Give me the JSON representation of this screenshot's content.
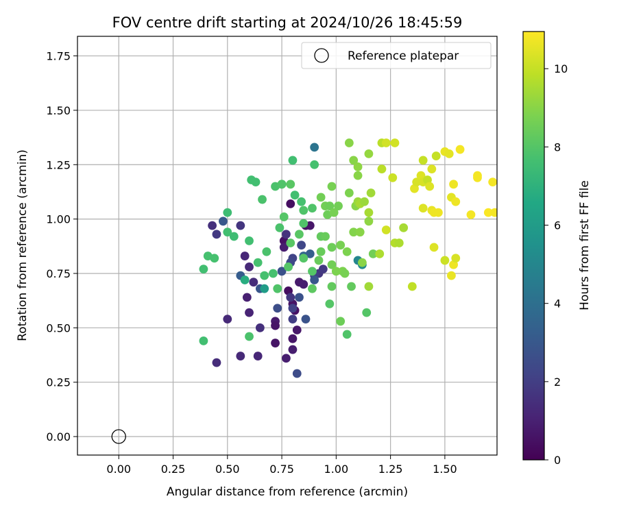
{
  "chart_data": {
    "type": "scatter",
    "title": "FOV centre drift starting at 2024/10/26 18:45:59",
    "xlabel": "Angular distance from reference (arcmin)",
    "ylabel": "Rotation from reference (arcmin)",
    "xlim": [
      -0.19,
      1.74
    ],
    "ylim": [
      -0.085,
      1.84
    ],
    "xticks": [
      0.0,
      0.25,
      0.5,
      0.75,
      1.0,
      1.25,
      1.5
    ],
    "xtick_labels": [
      "0.00",
      "0.25",
      "0.50",
      "0.75",
      "1.00",
      "1.25",
      "1.50"
    ],
    "yticks": [
      0.0,
      0.25,
      0.5,
      0.75,
      1.0,
      1.25,
      1.5,
      1.75
    ],
    "ytick_labels": [
      "0.00",
      "0.25",
      "0.50",
      "0.75",
      "1.00",
      "1.25",
      "1.50",
      "1.75"
    ],
    "grid": true,
    "legend": {
      "location": "upper right",
      "label": "Reference platepar"
    },
    "reference_point": {
      "x": 0.0,
      "y": 0.0,
      "marker": "open-circle"
    },
    "colorbar": {
      "label": "Hours from first FF file",
      "colormap": "viridis",
      "range": [
        0,
        10.95
      ],
      "ticks": [
        0,
        2,
        4,
        6,
        8,
        10
      ],
      "tick_labels": [
        "0",
        "2",
        "4",
        "6",
        "8",
        "10"
      ]
    },
    "points": [
      [
        0.79,
        1.07,
        0.4
      ],
      [
        0.76,
        0.9,
        0.5
      ],
      [
        0.8,
        0.61,
        0.6
      ],
      [
        0.81,
        0.58,
        0.5
      ],
      [
        0.78,
        0.67,
        0.4
      ],
      [
        0.86,
        0.97,
        0.5
      ],
      [
        0.88,
        0.97,
        0.7
      ],
      [
        0.72,
        0.53,
        0.8
      ],
      [
        0.72,
        0.51,
        0.6
      ],
      [
        0.72,
        0.43,
        0.6
      ],
      [
        0.8,
        0.45,
        0.7
      ],
      [
        0.8,
        0.4,
        0.9
      ],
      [
        0.82,
        0.49,
        0.7
      ],
      [
        0.77,
        0.36,
        0.9
      ],
      [
        0.83,
        0.71,
        0.8
      ],
      [
        0.85,
        0.7,
        0.9
      ],
      [
        0.76,
        0.87,
        0.9
      ],
      [
        0.59,
        0.64,
        1.0
      ],
      [
        0.6,
        0.57,
        1.1
      ],
      [
        0.64,
        0.37,
        1.2
      ],
      [
        0.56,
        0.37,
        1.3
      ],
      [
        0.5,
        0.54,
        1.3
      ],
      [
        0.45,
        0.34,
        1.4
      ],
      [
        0.58,
        0.83,
        1.2
      ],
      [
        0.6,
        0.78,
        1.3
      ],
      [
        0.62,
        0.71,
        1.4
      ],
      [
        0.65,
        0.5,
        1.5
      ],
      [
        0.43,
        0.97,
        1.5
      ],
      [
        0.45,
        0.93,
        1.8
      ],
      [
        0.56,
        0.97,
        1.7
      ],
      [
        0.77,
        0.93,
        1.6
      ],
      [
        0.79,
        0.64,
        1.7
      ],
      [
        0.8,
        0.54,
        2.0
      ],
      [
        0.8,
        0.59,
        2.1
      ],
      [
        0.92,
        0.75,
        1.7
      ],
      [
        0.94,
        0.77,
        1.8
      ],
      [
        0.9,
        0.74,
        2.0
      ],
      [
        0.8,
        0.82,
        2.2
      ],
      [
        0.79,
        0.8,
        2.4
      ],
      [
        0.84,
        0.88,
        2.3
      ],
      [
        0.73,
        0.59,
        2.6
      ],
      [
        0.82,
        0.29,
        2.5
      ],
      [
        0.86,
        0.54,
        2.8
      ],
      [
        0.83,
        0.64,
        2.7
      ],
      [
        0.75,
        0.76,
        2.7
      ],
      [
        0.9,
        0.72,
        2.9
      ],
      [
        0.65,
        0.68,
        2.9
      ],
      [
        0.48,
        0.99,
        3.0
      ],
      [
        0.56,
        0.74,
        3.2
      ],
      [
        0.85,
        0.83,
        3.6
      ],
      [
        0.88,
        0.84,
        3.3
      ],
      [
        0.9,
        1.33,
        4.2
      ],
      [
        1.1,
        0.81,
        5.0
      ],
      [
        1.12,
        0.79,
        5.2
      ],
      [
        0.67,
        0.68,
        6.0
      ],
      [
        0.58,
        0.72,
        6.8
      ],
      [
        0.39,
        0.44,
        7.6
      ],
      [
        0.39,
        0.77,
        7.6
      ],
      [
        0.41,
        0.83,
        7.7
      ],
      [
        0.44,
        0.82,
        7.7
      ],
      [
        0.5,
        0.94,
        7.6
      ],
      [
        0.5,
        1.03,
        7.5
      ],
      [
        0.53,
        0.92,
        7.5
      ],
      [
        0.6,
        0.9,
        7.6
      ],
      [
        0.6,
        0.46,
        7.8
      ],
      [
        0.61,
        1.18,
        7.6
      ],
      [
        0.63,
        1.17,
        7.6
      ],
      [
        0.64,
        0.8,
        7.7
      ],
      [
        0.66,
        1.09,
        7.8
      ],
      [
        0.67,
        0.74,
        7.7
      ],
      [
        0.68,
        0.85,
        7.8
      ],
      [
        0.71,
        0.75,
        7.7
      ],
      [
        0.72,
        1.15,
        7.8
      ],
      [
        0.73,
        0.68,
        7.9
      ],
      [
        0.74,
        0.96,
        7.8
      ],
      [
        0.75,
        1.16,
        7.9
      ],
      [
        0.75,
        1.16,
        7.9
      ],
      [
        0.76,
        1.01,
        8.0
      ],
      [
        0.78,
        0.78,
        8.0
      ],
      [
        0.79,
        0.89,
        8.1
      ],
      [
        0.79,
        1.16,
        8.1
      ],
      [
        0.8,
        1.27,
        7.6
      ],
      [
        0.81,
        1.11,
        7.6
      ],
      [
        0.83,
        0.93,
        8.1
      ],
      [
        0.84,
        1.08,
        7.7
      ],
      [
        0.85,
        0.98,
        7.9
      ],
      [
        0.85,
        1.04,
        7.9
      ],
      [
        0.85,
        0.82,
        8.0
      ],
      [
        0.89,
        0.76,
        8.0
      ],
      [
        0.89,
        0.68,
        8.2
      ],
      [
        0.89,
        1.05,
        7.9
      ],
      [
        0.9,
        1.25,
        7.7
      ],
      [
        0.92,
        0.81,
        8.4
      ],
      [
        0.93,
        0.85,
        8.4
      ],
      [
        0.93,
        1.1,
        8.6
      ],
      [
        0.93,
        0.92,
        8.3
      ],
      [
        0.95,
        1.06,
        8.6
      ],
      [
        0.95,
        0.92,
        8.4
      ],
      [
        0.96,
        1.02,
        8.5
      ],
      [
        0.97,
        1.06,
        8.5
      ],
      [
        0.97,
        0.61,
        8.0
      ],
      [
        0.98,
        0.87,
        8.5
      ],
      [
        0.98,
        0.79,
        8.6
      ],
      [
        0.98,
        0.69,
        8.3
      ],
      [
        0.98,
        1.15,
        8.7
      ],
      [
        0.99,
        1.03,
        8.7
      ],
      [
        1.0,
        0.76,
        8.8
      ],
      [
        1.01,
        1.06,
        8.6
      ],
      [
        1.02,
        0.53,
        8.5
      ],
      [
        1.02,
        0.88,
        8.7
      ],
      [
        1.03,
        0.76,
        8.8
      ],
      [
        1.04,
        0.75,
        8.7
      ],
      [
        1.05,
        0.47,
        7.9
      ],
      [
        1.05,
        0.85,
        8.8
      ],
      [
        1.06,
        1.35,
        9.0
      ],
      [
        1.06,
        1.12,
        8.8
      ],
      [
        1.07,
        0.69,
        8.3
      ],
      [
        1.08,
        1.27,
        9.0
      ],
      [
        1.08,
        0.94,
        8.9
      ],
      [
        1.09,
        1.06,
        9.0
      ],
      [
        1.1,
        1.08,
        9.3
      ],
      [
        1.1,
        1.24,
        9.1
      ],
      [
        1.1,
        1.2,
        9.0
      ],
      [
        1.11,
        1.07,
        9.5
      ],
      [
        1.11,
        0.94,
        9.0
      ],
      [
        1.12,
        0.8,
        9.0
      ],
      [
        1.13,
        1.08,
        9.3
      ],
      [
        1.14,
        0.57,
        8.0
      ],
      [
        1.15,
        0.99,
        9.1
      ],
      [
        1.15,
        1.3,
        9.2
      ],
      [
        1.15,
        0.69,
        9.4
      ],
      [
        1.15,
        1.03,
        9.5
      ],
      [
        1.16,
        1.12,
        9.4
      ],
      [
        1.17,
        0.84,
        8.6
      ],
      [
        1.2,
        0.84,
        9.6
      ],
      [
        1.21,
        1.23,
        9.8
      ],
      [
        1.21,
        1.35,
        9.8
      ],
      [
        1.23,
        1.35,
        10.2
      ],
      [
        1.23,
        0.95,
        10.2
      ],
      [
        1.26,
        1.19,
        10.1
      ],
      [
        1.27,
        0.89,
        9.7
      ],
      [
        1.27,
        1.35,
        10.2
      ],
      [
        1.29,
        0.89,
        9.6
      ],
      [
        1.31,
        0.96,
        9.5
      ],
      [
        1.35,
        0.69,
        9.9
      ],
      [
        1.36,
        1.14,
        10.5
      ],
      [
        1.37,
        1.17,
        10.3
      ],
      [
        1.39,
        1.2,
        10.4
      ],
      [
        1.4,
        1.17,
        10.3
      ],
      [
        1.4,
        1.05,
        10.4
      ],
      [
        1.4,
        1.27,
        10.0
      ],
      [
        1.42,
        1.18,
        10.0
      ],
      [
        1.43,
        1.15,
        10.4
      ],
      [
        1.44,
        1.23,
        10.4
      ],
      [
        1.44,
        1.04,
        10.6
      ],
      [
        1.45,
        1.03,
        10.7
      ],
      [
        1.45,
        0.87,
        10.4
      ],
      [
        1.46,
        1.29,
        10.0
      ],
      [
        1.47,
        1.03,
        10.7
      ],
      [
        1.5,
        1.31,
        10.6
      ],
      [
        1.5,
        0.81,
        10.1
      ],
      [
        1.52,
        1.3,
        10.5
      ],
      [
        1.53,
        1.1,
        10.5
      ],
      [
        1.53,
        0.74,
        10.6
      ],
      [
        1.54,
        1.16,
        10.7
      ],
      [
        1.54,
        0.79,
        10.7
      ],
      [
        1.55,
        1.08,
        10.7
      ],
      [
        1.55,
        0.82,
        10.3
      ],
      [
        1.57,
        1.32,
        10.8
      ],
      [
        1.62,
        1.02,
        10.8
      ],
      [
        1.65,
        1.19,
        10.8
      ],
      [
        1.65,
        1.2,
        10.8
      ],
      [
        1.7,
        1.03,
        10.9
      ],
      [
        1.72,
        1.17,
        10.8
      ],
      [
        1.73,
        1.03,
        10.8
      ]
    ]
  }
}
